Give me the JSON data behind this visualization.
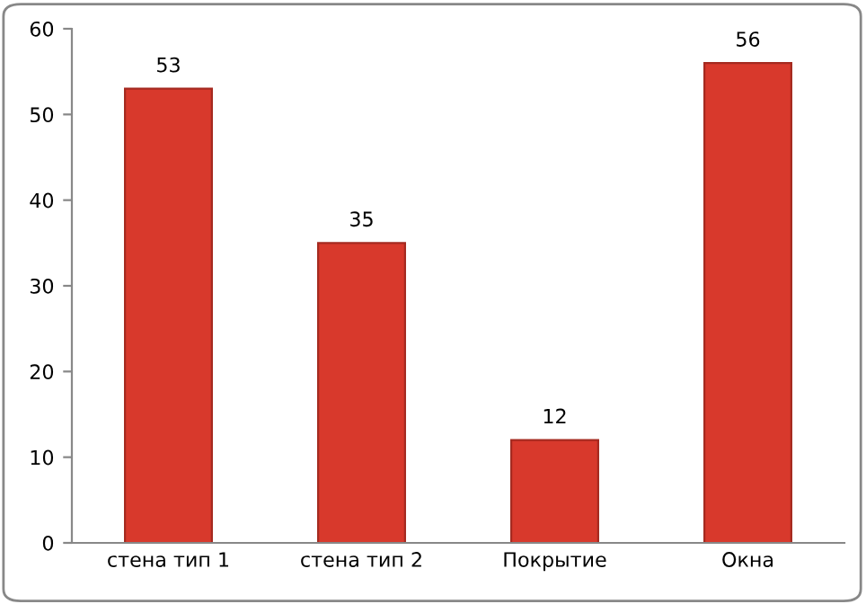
{
  "chart_data": {
    "type": "bar",
    "categories": [
      "стена тип 1",
      "стена тип 2",
      "Покрытие",
      "Окна"
    ],
    "values": [
      53,
      35,
      12,
      56
    ],
    "color": "#d8392c",
    "ylim": [
      0,
      60
    ],
    "yticks": [
      0,
      10,
      20,
      30,
      40,
      50,
      60
    ],
    "grid": false,
    "data_labels": true
  }
}
